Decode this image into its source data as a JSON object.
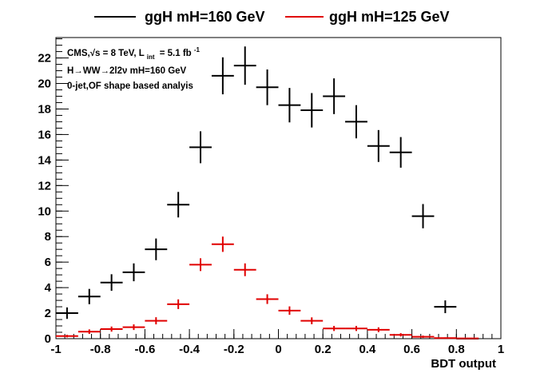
{
  "chart_data": {
    "type": "scatter",
    "xlabel": "BDT output",
    "ylabel": "",
    "xlim": [
      -1,
      1
    ],
    "ylim": [
      0,
      23.6
    ],
    "x_ticks": [
      "-1",
      "-0.8",
      "-0.6",
      "-0.4",
      "-0.2",
      "0",
      "0.2",
      "0.4",
      "0.6",
      "0.8",
      "1"
    ],
    "y_ticks": [
      "0",
      "2",
      "4",
      "6",
      "8",
      "10",
      "12",
      "14",
      "16",
      "18",
      "20",
      "22"
    ],
    "legend_placement": "top, above plot",
    "annotations": [
      "CMS,√s = 8 TeV, L",
      "int",
      "= 5.1 fb",
      "-1",
      "H→WW→2l2ν mH=160 GeV",
      "0-jet,OF shape based analyis"
    ],
    "series": [
      {
        "name": "ggH mH=160 GeV",
        "color": "#000000",
        "x": [
          -0.95,
          -0.85,
          -0.75,
          -0.65,
          -0.55,
          -0.45,
          -0.35,
          -0.25,
          -0.15,
          -0.05,
          0.05,
          0.15,
          0.25,
          0.35,
          0.45,
          0.55,
          0.65,
          0.75,
          0.85
        ],
        "y": [
          2.0,
          3.3,
          4.4,
          5.2,
          7.0,
          10.5,
          15.0,
          20.6,
          21.4,
          19.7,
          18.3,
          17.9,
          19.0,
          17.0,
          15.1,
          14.6,
          9.6,
          2.5,
          0.0
        ],
        "yerr": [
          0.45,
          0.6,
          0.65,
          0.7,
          0.85,
          1.0,
          1.25,
          1.45,
          1.5,
          1.4,
          1.35,
          1.35,
          1.4,
          1.3,
          1.25,
          1.2,
          0.95,
          0.5,
          0.05
        ]
      },
      {
        "name": "ggH mH=125 GeV",
        "color": "#e00000",
        "x": [
          -0.95,
          -0.85,
          -0.75,
          -0.65,
          -0.55,
          -0.45,
          -0.35,
          -0.25,
          -0.15,
          -0.05,
          0.05,
          0.15,
          0.25,
          0.35,
          0.45,
          0.55,
          0.65,
          0.75,
          0.85
        ],
        "y": [
          0.2,
          0.55,
          0.75,
          0.9,
          1.4,
          2.7,
          5.8,
          7.4,
          5.4,
          3.1,
          2.2,
          1.4,
          0.8,
          0.8,
          0.7,
          0.3,
          0.15,
          0.05,
          0.02
        ],
        "yerr": [
          0.1,
          0.18,
          0.2,
          0.22,
          0.28,
          0.38,
          0.5,
          0.6,
          0.5,
          0.38,
          0.33,
          0.27,
          0.2,
          0.2,
          0.19,
          0.13,
          0.09,
          0.05,
          0.03
        ]
      }
    ]
  }
}
